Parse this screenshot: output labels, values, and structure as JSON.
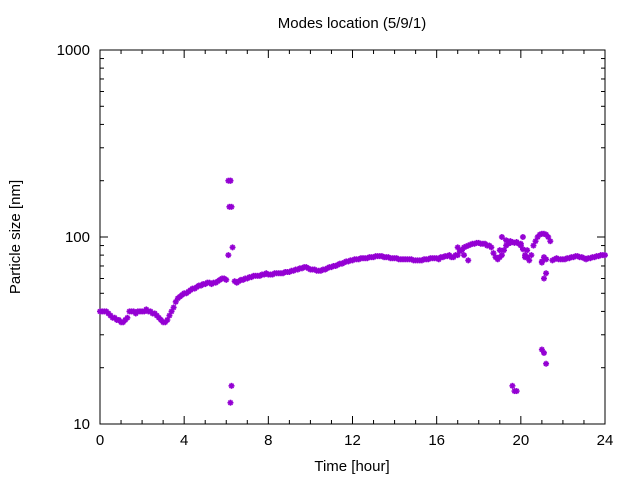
{
  "chart_data": {
    "type": "scatter",
    "title": "Modes location (5/9/1)",
    "xlabel": "Time [hour]",
    "ylabel": "Particle size [nm]",
    "xlim": [
      0,
      24
    ],
    "ylim": [
      10,
      1000
    ],
    "yscale": "log",
    "xticks": [
      "0",
      "4",
      "8",
      "12",
      "16",
      "20",
      "24"
    ],
    "yticks": [
      "10",
      "100",
      "1000"
    ],
    "grid": false,
    "marker_color": "#9400d3",
    "marker": "star",
    "series": [
      {
        "x": [
          0.0,
          0.1,
          0.2,
          0.3,
          0.4,
          0.5,
          0.6,
          0.7,
          0.8,
          0.9,
          1.0,
          1.1,
          1.2,
          1.3,
          1.4,
          1.5,
          1.6,
          1.7,
          1.8,
          1.9,
          2.0,
          2.1,
          2.2,
          2.3,
          2.4,
          2.5,
          2.6,
          2.7,
          2.8,
          2.9,
          3.0,
          3.1,
          3.2,
          3.3,
          3.4,
          3.5,
          3.6,
          3.7,
          3.8,
          3.9,
          4.0,
          4.1,
          4.2,
          4.3,
          4.4,
          4.5,
          4.6,
          4.7,
          4.8,
          4.9,
          5.0,
          5.1,
          5.2,
          5.3,
          5.4,
          5.5,
          5.6,
          5.7,
          5.8,
          5.9,
          6.0,
          6.1,
          6.2,
          6.3,
          6.4,
          6.5,
          6.6,
          6.7,
          6.8,
          6.9,
          7.0,
          7.1,
          7.2,
          7.3,
          7.4,
          7.5,
          7.6,
          7.7,
          7.8,
          7.9,
          8.0,
          8.1,
          8.2,
          8.3,
          8.4,
          8.5,
          8.6,
          8.7,
          8.8,
          8.9,
          9.0,
          9.1,
          9.2,
          9.3,
          9.4,
          9.5,
          9.6,
          9.7,
          9.8,
          9.9,
          10.0,
          10.1,
          10.2,
          10.3,
          10.4,
          10.5,
          10.6,
          10.7,
          10.8,
          10.9,
          11.0,
          11.1,
          11.2,
          11.3,
          11.4,
          11.5,
          11.6,
          11.7,
          11.8,
          11.9,
          12.0,
          12.1,
          12.2,
          12.3,
          12.4,
          12.5,
          12.6,
          12.7,
          12.8,
          12.9,
          13.0,
          13.1,
          13.2,
          13.3,
          13.4,
          13.5,
          13.6,
          13.7,
          13.8,
          13.9,
          14.0,
          14.1,
          14.2,
          14.3,
          14.4,
          14.5,
          14.6,
          14.7,
          14.8,
          14.9,
          15.0,
          15.1,
          15.2,
          15.3,
          15.4,
          15.5,
          15.6,
          15.7,
          15.8,
          15.9,
          16.0,
          16.1,
          16.2,
          16.3,
          16.4,
          16.5,
          16.6,
          16.7,
          16.8,
          16.9,
          17.0,
          17.1,
          17.2,
          17.3,
          17.4,
          17.5,
          17.6,
          17.7,
          17.8,
          17.9,
          18.0,
          18.1,
          18.2,
          18.3,
          18.4,
          18.5,
          18.6,
          18.7,
          18.8,
          18.9,
          19.0,
          19.1,
          19.2,
          19.3,
          19.4,
          19.5,
          19.6,
          19.7,
          19.8,
          19.9,
          20.0,
          20.1,
          20.2,
          20.3,
          20.4,
          20.5,
          20.6,
          20.7,
          20.8,
          20.9,
          21.0,
          21.1,
          21.2,
          21.3,
          21.4,
          21.5,
          21.6,
          21.7,
          21.8,
          21.9,
          22.0,
          22.1,
          22.2,
          22.3,
          22.4,
          22.5,
          22.6,
          22.7,
          22.8,
          22.9,
          23.0,
          23.1,
          23.2,
          23.3,
          23.4,
          23.5,
          23.6,
          23.7,
          23.8,
          23.9,
          24.0,
          6.1,
          6.15,
          6.2,
          6.25,
          6.2,
          6.25,
          17.0,
          17.3,
          17.5,
          19.0,
          19.1,
          19.3,
          19.5,
          19.6,
          19.7,
          19.8,
          20.0,
          20.1,
          20.2,
          20.3,
          21.0,
          21.1,
          21.2,
          21.0,
          21.1,
          21.2,
          21.0,
          21.1,
          21.2
        ],
        "y": [
          40,
          40,
          40,
          40,
          39,
          38,
          37,
          37,
          36,
          36,
          35,
          35,
          36,
          37,
          40,
          40,
          40,
          39,
          40,
          40,
          40,
          40,
          41,
          40,
          40,
          39,
          39,
          38,
          37,
          36,
          35,
          35,
          36,
          38,
          40,
          42,
          45,
          47,
          48,
          49,
          50,
          50,
          51,
          52,
          53,
          53,
          54,
          55,
          55,
          56,
          56,
          57,
          57,
          56,
          57,
          57,
          58,
          59,
          60,
          60,
          59,
          200,
          200,
          88,
          58,
          57,
          58,
          59,
          59,
          60,
          60,
          61,
          61,
          62,
          62,
          62,
          62,
          63,
          63,
          64,
          63,
          63,
          63,
          64,
          64,
          64,
          64,
          64,
          65,
          65,
          65,
          66,
          66,
          67,
          67,
          68,
          68,
          69,
          69,
          68,
          67,
          67,
          67,
          66,
          66,
          66,
          67,
          67,
          68,
          69,
          69,
          70,
          70,
          71,
          72,
          72,
          73,
          74,
          74,
          75,
          75,
          76,
          76,
          76,
          77,
          77,
          77,
          77,
          78,
          78,
          78,
          79,
          79,
          79,
          79,
          78,
          78,
          78,
          77,
          77,
          77,
          77,
          76,
          76,
          76,
          76,
          76,
          76,
          76,
          75,
          75,
          75,
          75,
          75,
          76,
          76,
          76,
          77,
          77,
          77,
          77,
          76,
          78,
          78,
          79,
          79,
          80,
          78,
          78,
          80,
          80,
          84,
          85,
          88,
          89,
          90,
          91,
          92,
          92,
          93,
          93,
          92,
          92,
          92,
          90,
          90,
          88,
          82,
          78,
          76,
          78,
          80,
          85,
          90,
          92,
          95,
          94,
          93,
          94,
          92,
          90,
          86,
          80,
          78,
          75,
          80,
          90,
          95,
          100,
          103,
          104,
          104,
          103,
          100,
          95,
          75,
          76,
          77,
          76,
          76,
          76,
          76,
          77,
          77,
          78,
          78,
          79,
          79,
          78,
          78,
          77,
          76,
          77,
          77,
          78,
          78,
          79,
          79,
          80,
          80,
          80,
          80,
          145,
          13,
          16,
          200,
          145,
          88,
          80,
          75,
          85,
          100,
          96,
          93,
          16,
          15,
          15,
          92,
          100,
          78,
          85,
          74,
          60,
          64,
          25,
          24,
          21,
          73,
          78,
          76
        ]
      }
    ]
  }
}
